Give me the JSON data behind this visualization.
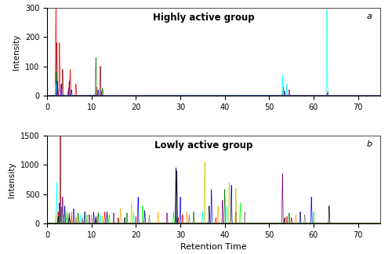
{
  "title_a": "Highly active group",
  "title_b": "Lowly active group",
  "label_a": "a",
  "label_b": "b",
  "xlabel": "Retention Time",
  "ylabel": "Intensity",
  "xlim": [
    0,
    75
  ],
  "ylim_a": [
    0,
    300
  ],
  "ylim_b": [
    0,
    1500
  ],
  "xticks": [
    0,
    10,
    20,
    30,
    40,
    50,
    60,
    70
  ],
  "yticks_a": [
    0,
    100,
    200,
    300
  ],
  "yticks_b": [
    0,
    500,
    1000,
    1500
  ],
  "figsize": [
    5.0,
    3.24
  ],
  "dpi": 100,
  "panel_a": {
    "traces": [
      {
        "color": "red",
        "peaks": [
          [
            2.0,
            300
          ],
          [
            2.8,
            180
          ],
          [
            5.2,
            90
          ],
          [
            6.5,
            40
          ],
          [
            11.2,
            30
          ],
          [
            63.2,
            15
          ]
        ]
      },
      {
        "color": "darkred",
        "peaks": [
          [
            2.2,
            180
          ],
          [
            3.5,
            90
          ],
          [
            5.0,
            50
          ],
          [
            12.0,
            100
          ],
          [
            63.1,
            10
          ]
        ]
      },
      {
        "color": "green",
        "peaks": [
          [
            2.1,
            80
          ],
          [
            11.0,
            130
          ],
          [
            12.5,
            25
          ],
          [
            53.2,
            30
          ]
        ]
      },
      {
        "color": "blue",
        "peaks": [
          [
            2.3,
            50
          ],
          [
            3.2,
            40
          ],
          [
            5.5,
            20
          ],
          [
            11.5,
            20
          ],
          [
            53.5,
            15
          ]
        ]
      },
      {
        "color": "cyan",
        "peaks": [
          [
            2.0,
            40
          ],
          [
            53.0,
            70
          ],
          [
            54.0,
            40
          ],
          [
            63.0,
            290
          ]
        ]
      },
      {
        "color": "purple",
        "peaks": [
          [
            2.4,
            30
          ],
          [
            4.8,
            25
          ],
          [
            12.2,
            15
          ],
          [
            54.5,
            20
          ]
        ]
      }
    ]
  },
  "panel_b": {
    "traces": [
      {
        "color": "red",
        "peaks": [
          [
            2.5,
            200
          ],
          [
            5.5,
            150
          ],
          [
            8.0,
            80
          ],
          [
            13.0,
            200
          ],
          [
            20.0,
            120
          ],
          [
            30.5,
            150
          ],
          [
            38.0,
            100
          ],
          [
            54.0,
            120
          ]
        ]
      },
      {
        "color": "darkred",
        "peaks": [
          [
            3.0,
            1500
          ],
          [
            6.5,
            100
          ],
          [
            11.0,
            120
          ],
          [
            16.0,
            100
          ],
          [
            29.5,
            100
          ],
          [
            42.5,
            200
          ],
          [
            55.0,
            100
          ]
        ]
      },
      {
        "color": "cyan",
        "peaks": [
          [
            2.2,
            700
          ],
          [
            4.5,
            200
          ],
          [
            7.5,
            150
          ],
          [
            12.0,
            150
          ],
          [
            19.5,
            200
          ],
          [
            35.0,
            200
          ],
          [
            40.5,
            300
          ]
        ]
      },
      {
        "color": "purple",
        "peaks": [
          [
            3.5,
            450
          ],
          [
            5.0,
            180
          ],
          [
            9.5,
            150
          ],
          [
            15.0,
            180
          ],
          [
            27.0,
            180
          ],
          [
            39.5,
            400
          ],
          [
            53.0,
            850
          ]
        ]
      },
      {
        "color": "blue",
        "peaks": [
          [
            2.8,
            350
          ],
          [
            6.0,
            250
          ],
          [
            10.5,
            200
          ],
          [
            20.5,
            450
          ],
          [
            30.0,
            450
          ],
          [
            37.0,
            580
          ],
          [
            59.5,
            450
          ]
        ]
      },
      {
        "color": "darkblue",
        "peaks": [
          [
            4.0,
            300
          ],
          [
            8.5,
            200
          ],
          [
            13.5,
            200
          ],
          [
            22.0,
            220
          ],
          [
            29.0,
            950
          ],
          [
            41.5,
            650
          ],
          [
            57.0,
            200
          ]
        ]
      },
      {
        "color": "green",
        "peaks": [
          [
            3.2,
            280
          ],
          [
            7.0,
            180
          ],
          [
            11.5,
            180
          ],
          [
            18.0,
            180
          ],
          [
            33.0,
            200
          ],
          [
            40.0,
            580
          ],
          [
            54.5,
            180
          ]
        ]
      },
      {
        "color": "lime",
        "peaks": [
          [
            4.5,
            200
          ],
          [
            9.0,
            150
          ],
          [
            14.0,
            150
          ],
          [
            21.5,
            300
          ],
          [
            28.5,
            200
          ],
          [
            43.5,
            350
          ],
          [
            60.0,
            200
          ]
        ]
      },
      {
        "color": "orange",
        "peaks": [
          [
            5.5,
            200
          ],
          [
            10.0,
            150
          ],
          [
            16.5,
            250
          ],
          [
            25.0,
            200
          ],
          [
            31.5,
            200
          ],
          [
            38.5,
            300
          ],
          [
            56.0,
            150
          ]
        ]
      },
      {
        "color": "#cccc00",
        "peaks": [
          [
            2.0,
            150
          ],
          [
            6.5,
            120
          ],
          [
            12.5,
            120
          ],
          [
            19.0,
            350
          ],
          [
            35.5,
            1050
          ],
          [
            41.0,
            700
          ],
          [
            42.5,
            600
          ]
        ]
      },
      {
        "color": "gray",
        "peaks": [
          [
            3.8,
            150
          ],
          [
            8.0,
            100
          ],
          [
            15.0,
            100
          ],
          [
            23.0,
            150
          ],
          [
            32.0,
            150
          ],
          [
            44.5,
            200
          ],
          [
            58.0,
            150
          ]
        ]
      },
      {
        "color": "black",
        "peaks": [
          [
            2.5,
            120
          ],
          [
            5.0,
            100
          ],
          [
            11.0,
            100
          ],
          [
            17.5,
            100
          ],
          [
            29.2,
            900
          ],
          [
            36.5,
            300
          ],
          [
            53.5,
            100
          ],
          [
            63.5,
            300
          ]
        ]
      }
    ]
  }
}
